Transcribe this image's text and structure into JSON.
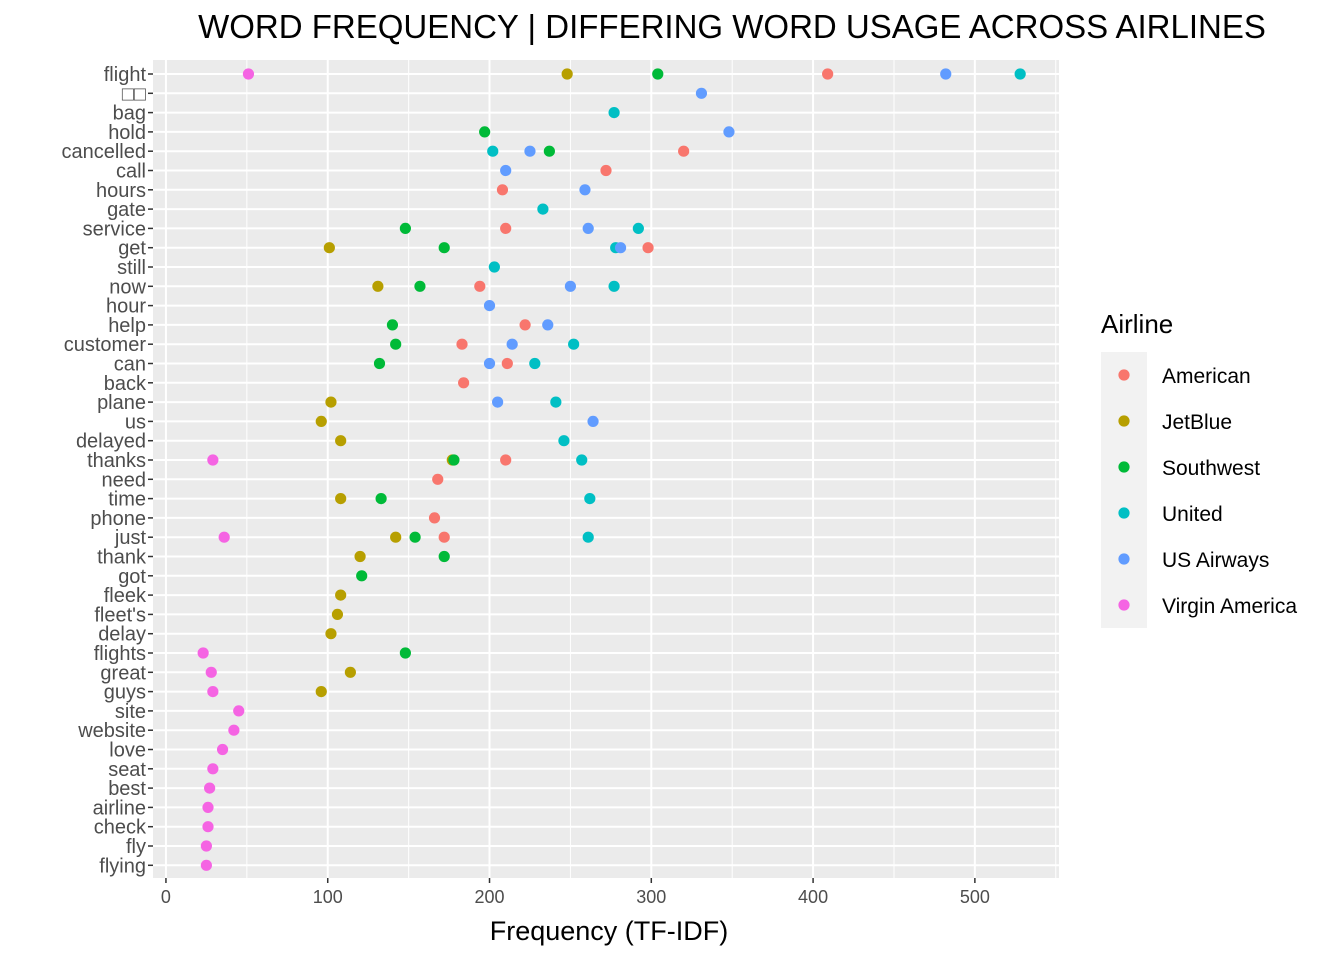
{
  "chart_data": {
    "type": "scatter",
    "title": "WORD FREQUENCY | DIFFERING WORD USAGE ACROSS AIRLINES",
    "xlabel": "Frequency (TF-IDF)",
    "ylabel": "",
    "xlim": [
      -8,
      552
    ],
    "xticks": [
      0,
      100,
      200,
      300,
      400,
      500
    ],
    "grid": true,
    "legend_title": "Airline",
    "legend_position": "right",
    "categories": [
      "flight",
      "□□",
      "bag",
      "hold",
      "cancelled",
      "call",
      "hours",
      "gate",
      "service",
      "get",
      "still",
      "now",
      "hour",
      "help",
      "customer",
      "can",
      "back",
      "plane",
      "us",
      "delayed",
      "thanks",
      "need",
      "time",
      "phone",
      "just",
      "thank",
      "got",
      "fleek",
      "fleet's",
      "delay",
      "flights",
      "great",
      "guys",
      "site",
      "website",
      "love",
      "seat",
      "best",
      "airline",
      "check",
      "fly",
      "flying"
    ],
    "series": [
      {
        "name": "American",
        "color": "#F8766D",
        "points": [
          {
            "word": "flight",
            "x": 409
          },
          {
            "word": "cancelled",
            "x": 320
          },
          {
            "word": "call",
            "x": 272
          },
          {
            "word": "hours",
            "x": 208
          },
          {
            "word": "service",
            "x": 210
          },
          {
            "word": "get",
            "x": 298
          },
          {
            "word": "now",
            "x": 194
          },
          {
            "word": "help",
            "x": 222
          },
          {
            "word": "customer",
            "x": 183
          },
          {
            "word": "can",
            "x": 211
          },
          {
            "word": "back",
            "x": 184
          },
          {
            "word": "thanks",
            "x": 210
          },
          {
            "word": "need",
            "x": 168
          },
          {
            "word": "phone",
            "x": 166
          },
          {
            "word": "just",
            "x": 172
          }
        ]
      },
      {
        "name": "JetBlue",
        "color": "#B79F00",
        "points": [
          {
            "word": "flight",
            "x": 248
          },
          {
            "word": "get",
            "x": 101
          },
          {
            "word": "now",
            "x": 131
          },
          {
            "word": "plane",
            "x": 102
          },
          {
            "word": "us",
            "x": 96
          },
          {
            "word": "delayed",
            "x": 108
          },
          {
            "word": "thanks",
            "x": 177
          },
          {
            "word": "time",
            "x": 108
          },
          {
            "word": "just",
            "x": 142
          },
          {
            "word": "thank",
            "x": 120
          },
          {
            "word": "fleek",
            "x": 108
          },
          {
            "word": "fleet's",
            "x": 106
          },
          {
            "word": "delay",
            "x": 102
          },
          {
            "word": "great",
            "x": 114
          },
          {
            "word": "guys",
            "x": 96
          }
        ]
      },
      {
        "name": "Southwest",
        "color": "#00BA38",
        "points": [
          {
            "word": "flight",
            "x": 304
          },
          {
            "word": "hold",
            "x": 197
          },
          {
            "word": "cancelled",
            "x": 237
          },
          {
            "word": "service",
            "x": 148
          },
          {
            "word": "get",
            "x": 172
          },
          {
            "word": "now",
            "x": 157
          },
          {
            "word": "help",
            "x": 140
          },
          {
            "word": "customer",
            "x": 142
          },
          {
            "word": "can",
            "x": 132
          },
          {
            "word": "thanks",
            "x": 178
          },
          {
            "word": "time",
            "x": 133
          },
          {
            "word": "just",
            "x": 154
          },
          {
            "word": "thank",
            "x": 172
          },
          {
            "word": "got",
            "x": 121
          },
          {
            "word": "flights",
            "x": 148
          }
        ]
      },
      {
        "name": "United",
        "color": "#00BFC4",
        "points": [
          {
            "word": "flight",
            "x": 528
          },
          {
            "word": "bag",
            "x": 277
          },
          {
            "word": "cancelled",
            "x": 202
          },
          {
            "word": "gate",
            "x": 233
          },
          {
            "word": "service",
            "x": 292
          },
          {
            "word": "get",
            "x": 278
          },
          {
            "word": "still",
            "x": 203
          },
          {
            "word": "now",
            "x": 277
          },
          {
            "word": "customer",
            "x": 252
          },
          {
            "word": "can",
            "x": 228
          },
          {
            "word": "plane",
            "x": 241
          },
          {
            "word": "delayed",
            "x": 246
          },
          {
            "word": "thanks",
            "x": 257
          },
          {
            "word": "time",
            "x": 262
          },
          {
            "word": "just",
            "x": 261
          }
        ]
      },
      {
        "name": "US Airways",
        "color": "#619CFF",
        "points": [
          {
            "word": "flight",
            "x": 482
          },
          {
            "word": "□□",
            "x": 331
          },
          {
            "word": "hold",
            "x": 348
          },
          {
            "word": "cancelled",
            "x": 225
          },
          {
            "word": "call",
            "x": 210
          },
          {
            "word": "hours",
            "x": 259
          },
          {
            "word": "service",
            "x": 261
          },
          {
            "word": "get",
            "x": 281
          },
          {
            "word": "now",
            "x": 250
          },
          {
            "word": "hour",
            "x": 200
          },
          {
            "word": "help",
            "x": 236
          },
          {
            "word": "customer",
            "x": 214
          },
          {
            "word": "can",
            "x": 200
          },
          {
            "word": "plane",
            "x": 205
          },
          {
            "word": "us",
            "x": 264
          }
        ]
      },
      {
        "name": "Virgin America",
        "color": "#F564E3",
        "points": [
          {
            "word": "flight",
            "x": 51
          },
          {
            "word": "thanks",
            "x": 29
          },
          {
            "word": "just",
            "x": 36
          },
          {
            "word": "flights",
            "x": 23
          },
          {
            "word": "great",
            "x": 28
          },
          {
            "word": "guys",
            "x": 29
          },
          {
            "word": "site",
            "x": 45
          },
          {
            "word": "website",
            "x": 42
          },
          {
            "word": "love",
            "x": 35
          },
          {
            "word": "seat",
            "x": 29
          },
          {
            "word": "best",
            "x": 27
          },
          {
            "word": "airline",
            "x": 26
          },
          {
            "word": "check",
            "x": 26
          },
          {
            "word": "fly",
            "x": 25
          },
          {
            "word": "flying",
            "x": 25
          }
        ]
      }
    ]
  }
}
